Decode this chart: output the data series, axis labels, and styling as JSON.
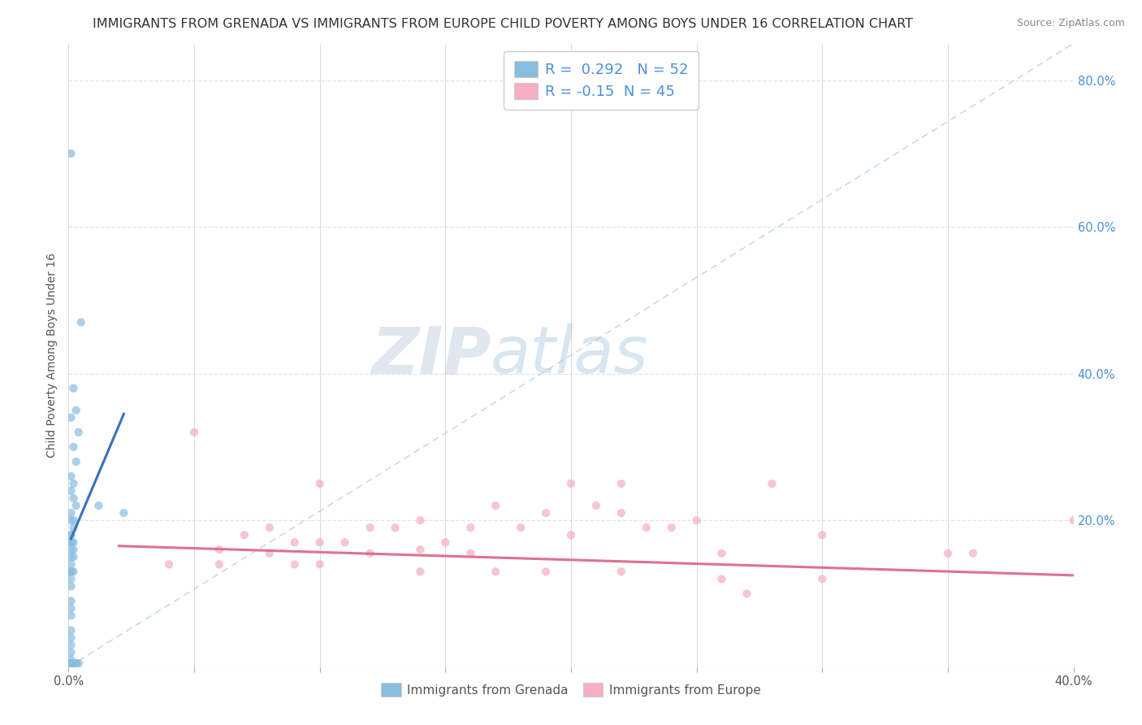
{
  "title": "IMMIGRANTS FROM GRENADA VS IMMIGRANTS FROM EUROPE CHILD POVERTY AMONG BOYS UNDER 16 CORRELATION CHART",
  "source": "Source: ZipAtlas.com",
  "ylabel": "Child Poverty Among Boys Under 16",
  "xlim": [
    0.0,
    0.4
  ],
  "ylim": [
    0.0,
    0.85
  ],
  "xticks": [
    0.0,
    0.05,
    0.1,
    0.15,
    0.2,
    0.25,
    0.3,
    0.35,
    0.4
  ],
  "yticks": [
    0.0,
    0.2,
    0.4,
    0.6,
    0.8
  ],
  "yticklabels_right": [
    "",
    "20.0%",
    "40.0%",
    "60.0%",
    "80.0%"
  ],
  "blue_R": 0.292,
  "blue_N": 52,
  "pink_R": -0.15,
  "pink_N": 45,
  "blue_scatter": [
    [
      0.001,
      0.7
    ],
    [
      0.005,
      0.47
    ],
    [
      0.002,
      0.38
    ],
    [
      0.003,
      0.35
    ],
    [
      0.001,
      0.34
    ],
    [
      0.004,
      0.32
    ],
    [
      0.002,
      0.3
    ],
    [
      0.003,
      0.28
    ],
    [
      0.001,
      0.26
    ],
    [
      0.002,
      0.25
    ],
    [
      0.001,
      0.24
    ],
    [
      0.002,
      0.23
    ],
    [
      0.003,
      0.22
    ],
    [
      0.001,
      0.21
    ],
    [
      0.002,
      0.2
    ],
    [
      0.001,
      0.2
    ],
    [
      0.002,
      0.19
    ],
    [
      0.001,
      0.18
    ],
    [
      0.001,
      0.18
    ],
    [
      0.001,
      0.17
    ],
    [
      0.001,
      0.17
    ],
    [
      0.002,
      0.17
    ],
    [
      0.001,
      0.16
    ],
    [
      0.002,
      0.16
    ],
    [
      0.001,
      0.15
    ],
    [
      0.002,
      0.15
    ],
    [
      0.001,
      0.14
    ],
    [
      0.001,
      0.13
    ],
    [
      0.001,
      0.13
    ],
    [
      0.002,
      0.13
    ],
    [
      0.001,
      0.12
    ],
    [
      0.001,
      0.11
    ],
    [
      0.012,
      0.22
    ],
    [
      0.022,
      0.21
    ],
    [
      0.001,
      0.09
    ],
    [
      0.001,
      0.08
    ],
    [
      0.001,
      0.07
    ],
    [
      0.001,
      0.05
    ],
    [
      0.001,
      0.04
    ],
    [
      0.001,
      0.03
    ],
    [
      0.001,
      0.02
    ],
    [
      0.001,
      0.01
    ],
    [
      0.001,
      0.005
    ],
    [
      0.002,
      0.005
    ],
    [
      0.001,
      0.005
    ],
    [
      0.002,
      0.005
    ],
    [
      0.003,
      0.005
    ],
    [
      0.003,
      0.005
    ],
    [
      0.004,
      0.005
    ],
    [
      0.002,
      0.005
    ],
    [
      0.001,
      0.005
    ],
    [
      0.003,
      0.005
    ]
  ],
  "pink_scatter": [
    [
      0.05,
      0.32
    ],
    [
      0.1,
      0.25
    ],
    [
      0.2,
      0.25
    ],
    [
      0.28,
      0.25
    ],
    [
      0.17,
      0.22
    ],
    [
      0.21,
      0.22
    ],
    [
      0.19,
      0.21
    ],
    [
      0.22,
      0.21
    ],
    [
      0.14,
      0.2
    ],
    [
      0.25,
      0.2
    ],
    [
      0.08,
      0.19
    ],
    [
      0.12,
      0.19
    ],
    [
      0.16,
      0.19
    ],
    [
      0.13,
      0.19
    ],
    [
      0.18,
      0.19
    ],
    [
      0.24,
      0.19
    ],
    [
      0.23,
      0.19
    ],
    [
      0.2,
      0.18
    ],
    [
      0.3,
      0.18
    ],
    [
      0.07,
      0.18
    ],
    [
      0.09,
      0.17
    ],
    [
      0.11,
      0.17
    ],
    [
      0.15,
      0.17
    ],
    [
      0.1,
      0.17
    ],
    [
      0.06,
      0.16
    ],
    [
      0.14,
      0.16
    ],
    [
      0.08,
      0.155
    ],
    [
      0.12,
      0.155
    ],
    [
      0.16,
      0.155
    ],
    [
      0.26,
      0.155
    ],
    [
      0.35,
      0.155
    ],
    [
      0.04,
      0.14
    ],
    [
      0.06,
      0.14
    ],
    [
      0.09,
      0.14
    ],
    [
      0.1,
      0.14
    ],
    [
      0.19,
      0.13
    ],
    [
      0.14,
      0.13
    ],
    [
      0.17,
      0.13
    ],
    [
      0.22,
      0.13
    ],
    [
      0.26,
      0.12
    ],
    [
      0.3,
      0.12
    ],
    [
      0.27,
      0.1
    ],
    [
      0.4,
      0.2
    ],
    [
      0.36,
      0.155
    ],
    [
      0.22,
      0.25
    ]
  ],
  "blue_color": "#89bde0",
  "pink_color": "#f5afc0",
  "blue_line_color": "#3a6fbd",
  "pink_line_color": "#e07090",
  "dash_color": "#b8c8d8",
  "background_color": "#ffffff",
  "grid_color": "#e0e4ea",
  "title_fontsize": 11.5,
  "label_fontsize": 10,
  "tick_fontsize": 10.5,
  "legend_fontsize": 13
}
